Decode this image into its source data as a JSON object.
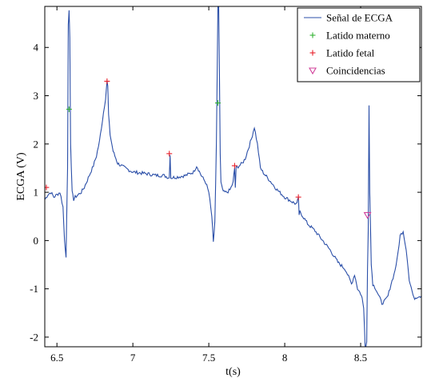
{
  "chart_data": {
    "type": "line",
    "xlabel": "t(s)",
    "ylabel": "ECGA (V)",
    "xlim": [
      6.42,
      8.9
    ],
    "ylim": [
      -2.2,
      4.85
    ],
    "x_ticks": [
      "6.5",
      "7",
      "7.5",
      "8",
      "8.5"
    ],
    "x_tick_values": [
      6.5,
      7.0,
      7.5,
      8.0,
      8.5
    ],
    "y_ticks": [
      "-2",
      "-1",
      "0",
      "1",
      "2",
      "3",
      "4"
    ],
    "y_tick_values": [
      -2,
      -1,
      0,
      1,
      2,
      3,
      4
    ],
    "grid": false,
    "legend_position": "top-right",
    "series": [
      {
        "name": "Señal de ECGA",
        "color": "#2b4fa8",
        "x": [
          6.42,
          6.44,
          6.46,
          6.48,
          6.5,
          6.52,
          6.54,
          6.55,
          6.56,
          6.57,
          6.575,
          6.58,
          6.585,
          6.59,
          6.6,
          6.61,
          6.62,
          6.64,
          6.66,
          6.68,
          6.7,
          6.72,
          6.74,
          6.76,
          6.78,
          6.8,
          6.82,
          6.83,
          6.835,
          6.84,
          6.85,
          6.87,
          6.9,
          6.95,
          7.0,
          7.05,
          7.1,
          7.15,
          7.2,
          7.24,
          7.245,
          7.25,
          7.3,
          7.35,
          7.4,
          7.42,
          7.45,
          7.48,
          7.5,
          7.52,
          7.53,
          7.54,
          7.55,
          7.56,
          7.565,
          7.57,
          7.575,
          7.58,
          7.59,
          7.6,
          7.62,
          7.64,
          7.66,
          7.67,
          7.675,
          7.68,
          7.7,
          7.72,
          7.74,
          7.76,
          7.78,
          7.8,
          7.82,
          7.84,
          7.86,
          7.9,
          7.95,
          8.0,
          8.05,
          8.08,
          8.09,
          8.095,
          8.1,
          8.15,
          8.2,
          8.25,
          8.3,
          8.35,
          8.4,
          8.44,
          8.46,
          8.48,
          8.5,
          8.51,
          8.52,
          8.53,
          8.54,
          8.545,
          8.55,
          8.555,
          8.56,
          8.57,
          8.58,
          8.6,
          8.62,
          8.64,
          8.66,
          8.68,
          8.7,
          8.72,
          8.74,
          8.76,
          8.78,
          8.8,
          8.82,
          8.85,
          8.88,
          8.9
        ],
        "y": [
          0.85,
          0.95,
          1.0,
          0.9,
          0.95,
          1.0,
          0.7,
          0.0,
          -0.35,
          1.5,
          4.5,
          4.8,
          4.2,
          2.0,
          1.0,
          0.85,
          0.9,
          0.95,
          1.0,
          1.1,
          1.25,
          1.4,
          1.55,
          1.75,
          2.05,
          2.5,
          2.95,
          3.3,
          3.2,
          2.6,
          2.2,
          1.85,
          1.6,
          1.5,
          1.42,
          1.4,
          1.38,
          1.35,
          1.35,
          1.3,
          1.8,
          1.3,
          1.32,
          1.35,
          1.42,
          1.55,
          1.35,
          1.2,
          1.0,
          0.5,
          -0.05,
          0.4,
          2.0,
          4.85,
          4.85,
          3.5,
          1.8,
          1.2,
          1.05,
          1.0,
          1.0,
          1.05,
          1.2,
          1.5,
          1.1,
          1.5,
          1.55,
          1.6,
          1.7,
          1.9,
          2.1,
          2.35,
          2.0,
          1.5,
          1.4,
          1.25,
          1.05,
          0.9,
          0.8,
          0.75,
          0.9,
          0.5,
          0.6,
          0.35,
          0.2,
          0.0,
          -0.2,
          -0.45,
          -0.6,
          -0.9,
          -0.7,
          -1.0,
          -1.1,
          -1.2,
          -1.4,
          -2.2,
          -2.1,
          -0.6,
          0.2,
          2.8,
          1.0,
          -0.5,
          -0.9,
          -1.0,
          -1.15,
          -1.3,
          -1.25,
          -1.15,
          -0.9,
          -0.7,
          -0.4,
          0.1,
          0.2,
          -0.2,
          -0.8,
          -1.2,
          -1.15,
          -1.15
        ]
      },
      {
        "name": "Latido materno",
        "color": "#33b233",
        "marker": "+",
        "x": [
          6.58,
          7.56
        ],
        "y": [
          2.72,
          2.85
        ]
      },
      {
        "name": "Latido fetal",
        "color": "#e8202a",
        "marker": "+",
        "x": [
          6.43,
          6.83,
          7.24,
          7.67,
          8.09
        ],
        "y": [
          1.1,
          3.3,
          1.8,
          1.55,
          0.9
        ]
      },
      {
        "name": "Coincidencias",
        "color": "#d0409a",
        "marker": "triangle-down",
        "x": [
          8.545
        ],
        "y": [
          0.53
        ]
      }
    ]
  }
}
